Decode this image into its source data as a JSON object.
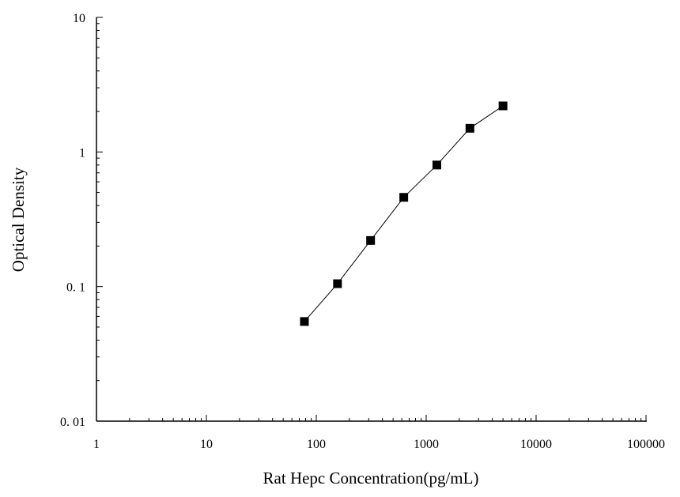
{
  "chart_data": {
    "type": "line",
    "xlabel": "Rat Hepc Concentration(pg/mL)",
    "ylabel": "Optical Density",
    "x_scale": "log",
    "y_scale": "log",
    "xlim": [
      1,
      100000
    ],
    "ylim": [
      0.01,
      10
    ],
    "x_ticks": [
      1,
      10,
      100,
      1000,
      10000,
      100000
    ],
    "x_tick_labels": [
      "1",
      "10",
      "100",
      "1000",
      "10000",
      "100000"
    ],
    "y_ticks": [
      0.01,
      0.1,
      1,
      10
    ],
    "y_tick_labels": [
      "0. 01",
      "0. 1",
      "1",
      "10"
    ],
    "grid": false,
    "series": [
      {
        "marker": "square",
        "color": "#000000",
        "x": [
          78,
          156,
          312,
          625,
          1250,
          2500,
          5000
        ],
        "y": [
          0.055,
          0.105,
          0.22,
          0.46,
          0.8,
          1.5,
          2.2
        ]
      }
    ]
  }
}
